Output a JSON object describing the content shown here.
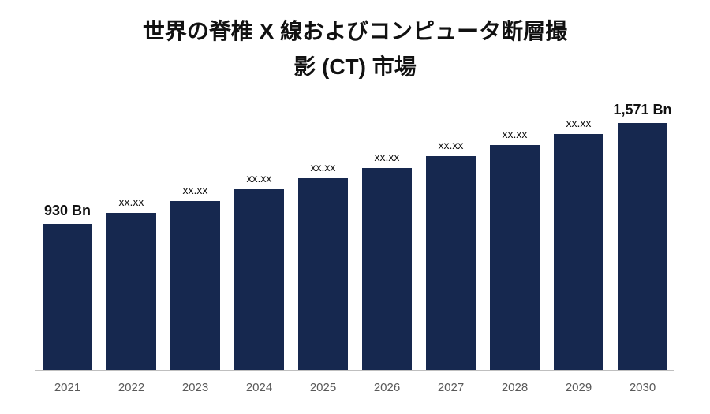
{
  "title": {
    "line1": "世界の脊椎 X 線およびコンピュータ断層撮",
    "line2": "影 (CT) 市場",
    "fontsize": 28,
    "color": "#111111"
  },
  "chart": {
    "type": "bar",
    "categories": [
      "2021",
      "2022",
      "2023",
      "2024",
      "2025",
      "2026",
      "2027",
      "2028",
      "2029",
      "2030"
    ],
    "values": [
      930,
      1000,
      1075,
      1150,
      1220,
      1285,
      1360,
      1430,
      1500,
      1571
    ],
    "value_labels": [
      "930 Bn",
      "xx.xx",
      "xx.xx",
      "xx.xx",
      "xx.xx",
      "xx.xx",
      "xx.xx",
      "xx.xx",
      "xx.xx",
      "1,571 Bn"
    ],
    "value_label_weights": [
      "bold",
      "normal",
      "normal",
      "normal",
      "normal",
      "normal",
      "normal",
      "normal",
      "normal",
      "bold"
    ],
    "ylim": [
      0,
      1700
    ],
    "bar_color": "#16284f",
    "bar_width": 0.78,
    "bar_gap": 0.22,
    "background_color": "#ffffff",
    "axis_line_color": "#bfbfbf",
    "xaxis_label_color": "#595959",
    "xaxis_label_fontsize": 15,
    "value_label_fontsize_bold": 18,
    "value_label_fontsize_normal": 14,
    "value_label_color": "#111111"
  }
}
